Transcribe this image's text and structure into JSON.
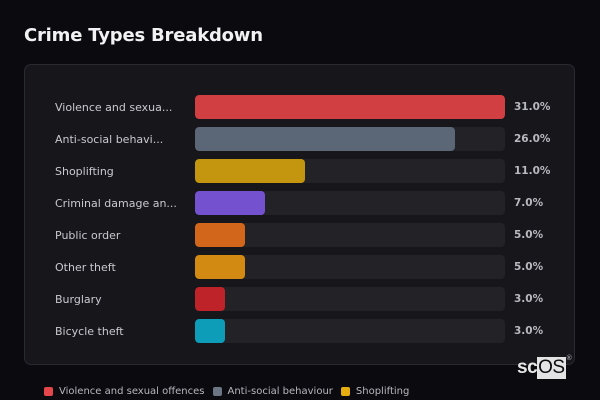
{
  "header": {
    "title": "Crime Types Breakdown"
  },
  "chart_data": {
    "type": "bar",
    "orientation": "horizontal",
    "title": "Crime Types Breakdown",
    "xlabel": "",
    "ylabel": "",
    "xlim": [
      0,
      31
    ],
    "grid": false,
    "legend_position": "bottom",
    "categories": [
      "Violence and sexual offences",
      "Anti-social behaviour",
      "Shoplifting",
      "Criminal damage and arson",
      "Public order",
      "Other theft",
      "Burglary",
      "Bicycle theft"
    ],
    "display_labels": [
      "Violence and sexua...",
      "Anti-social behavi...",
      "Shoplifting",
      "Criminal damage an...",
      "Public order",
      "Other theft",
      "Burglary",
      "Bicycle theft"
    ],
    "values": [
      31.0,
      26.0,
      11.0,
      7.0,
      5.0,
      5.0,
      3.0,
      3.0
    ],
    "value_labels": [
      "31.0%",
      "26.0%",
      "11.0%",
      "7.0%",
      "5.0%",
      "5.0%",
      "3.0%",
      "3.0%"
    ],
    "colors": [
      "#d13f43",
      "#5b6676",
      "#c4960f",
      "#7452cf",
      "#d2661b",
      "#d28a12",
      "#bd2328",
      "#0e9db8"
    ]
  },
  "rows": [
    {
      "label": "Violence and sexua...",
      "value": "31.0%",
      "pct": 100,
      "color": "#d13f43"
    },
    {
      "label": "Anti-social behavi...",
      "value": "26.0%",
      "pct": 83.9,
      "color": "#5b6676"
    },
    {
      "label": "Shoplifting",
      "value": "11.0%",
      "pct": 35.5,
      "color": "#c4960f"
    },
    {
      "label": "Criminal damage an...",
      "value": "7.0%",
      "pct": 22.6,
      "color": "#7452cf"
    },
    {
      "label": "Public order",
      "value": "5.0%",
      "pct": 16.1,
      "color": "#d2661b"
    },
    {
      "label": "Other theft",
      "value": "5.0%",
      "pct": 16.1,
      "color": "#d28a12"
    },
    {
      "label": "Burglary",
      "value": "3.0%",
      "pct": 9.7,
      "color": "#bd2328"
    },
    {
      "label": "Bicycle theft",
      "value": "3.0%",
      "pct": 9.7,
      "color": "#0e9db8"
    }
  ],
  "legend": [
    {
      "label": "Violence and sexual offences",
      "color": "#e3464b"
    },
    {
      "label": "Anti-social behaviour",
      "color": "#6b7584"
    },
    {
      "label": "Shoplifting",
      "color": "#e5ad10"
    }
  ],
  "logo": {
    "prefix": "sc",
    "highlight": "OS",
    "mark": "®"
  }
}
